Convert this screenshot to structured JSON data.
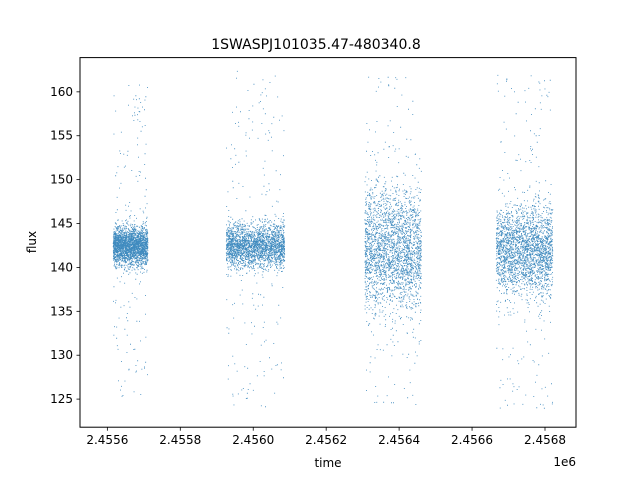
{
  "chart_data": {
    "type": "scatter",
    "title": "1SWASPJ101035.47-480340.8",
    "xlabel": "time",
    "ylabel": "flux",
    "x_offset_label": "1e6",
    "xlim": [
      2455525,
      2456885
    ],
    "ylim": [
      121.8,
      163.9
    ],
    "grid": false,
    "marker_color": "#1f77b4",
    "x_ticks": [
      2455600,
      2455800,
      2456000,
      2456200,
      2456400,
      2456600,
      2456800
    ],
    "x_tick_labels": [
      "2.4556",
      "2.4558",
      "2.4560",
      "2.4562",
      "2.4564",
      "2.4566",
      "2.4568"
    ],
    "y_ticks": [
      125,
      130,
      135,
      140,
      145,
      150,
      155,
      160
    ],
    "y_tick_labels": [
      "125",
      "130",
      "135",
      "140",
      "145",
      "150",
      "155",
      "160"
    ],
    "observing_seasons": [
      {
        "time_range": [
          2455615,
          2455710
        ],
        "flux_median": 142.5,
        "flux_core_range": [
          139.5,
          145.5
        ],
        "flux_extreme_range": [
          125,
          161
        ]
      },
      {
        "time_range": [
          2455925,
          2456085
        ],
        "flux_median": 142.5,
        "flux_core_range": [
          139,
          146
        ],
        "flux_extreme_range": [
          124,
          163
        ]
      },
      {
        "time_range": [
          2456305,
          2456460
        ],
        "flux_median": 142,
        "flux_core_range": [
          133,
          152
        ],
        "flux_extreme_range": [
          124,
          162
        ]
      },
      {
        "time_range": [
          2456665,
          2456820
        ],
        "flux_median": 142,
        "flux_core_range": [
          136,
          150
        ],
        "flux_extreme_range": [
          124,
          162
        ]
      }
    ]
  }
}
